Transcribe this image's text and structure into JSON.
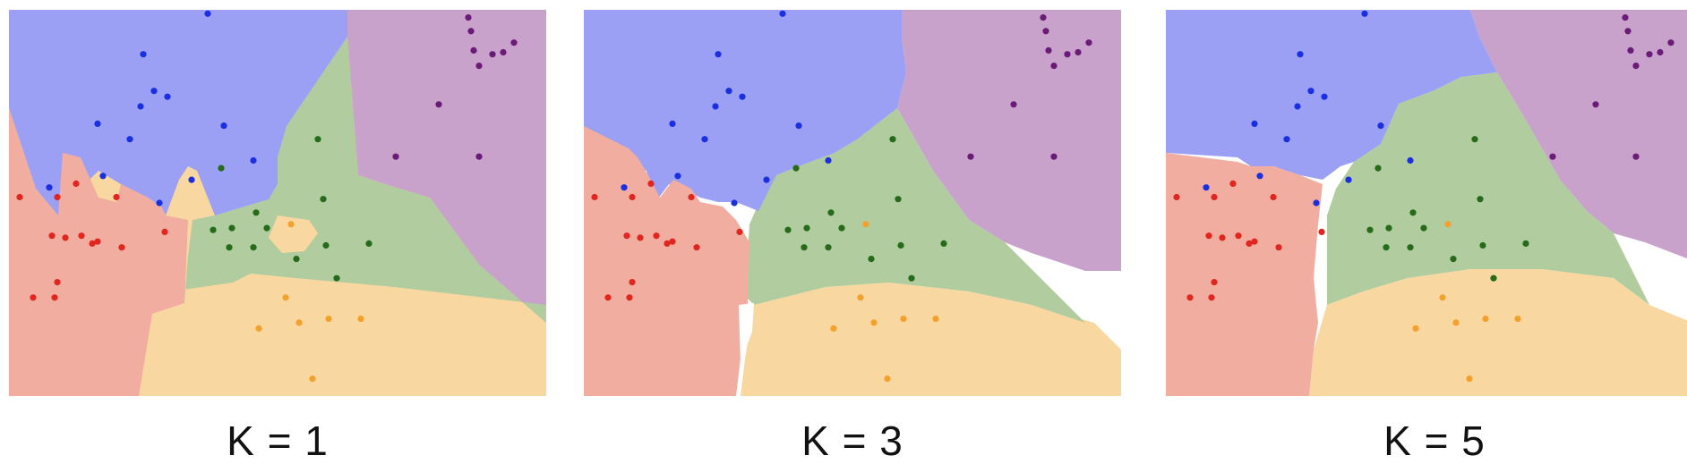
{
  "colors": {
    "blue_region": "#9ba0f5",
    "purple_region": "#c8a2cb",
    "green_region": "#b1cc9f",
    "yellow_region": "#f8d8a0",
    "red_region": "#f1ada0",
    "blue_point": "#1a2fe0",
    "purple_point": "#6a1b77",
    "green_point": "#256b1a",
    "yellow_point": "#f3a12c",
    "red_point": "#e0261e",
    "unassigned": "#ffffff"
  },
  "panels": [
    {
      "caption": "K = 1",
      "k": 1,
      "shows_unassigned_regions": false
    },
    {
      "caption": "K = 3",
      "k": 3,
      "shows_unassigned_regions": true
    },
    {
      "caption": "K = 5",
      "k": 5,
      "shows_unassigned_regions": true
    }
  ],
  "points": [
    {
      "c": "blue",
      "x": 0.37,
      "y": 0.01
    },
    {
      "c": "blue",
      "x": 0.25,
      "y": 0.115
    },
    {
      "c": "blue",
      "x": 0.27,
      "y": 0.21
    },
    {
      "c": "blue",
      "x": 0.295,
      "y": 0.225
    },
    {
      "c": "blue",
      "x": 0.245,
      "y": 0.25
    },
    {
      "c": "blue",
      "x": 0.165,
      "y": 0.295
    },
    {
      "c": "blue",
      "x": 0.225,
      "y": 0.335
    },
    {
      "c": "blue",
      "x": 0.4,
      "y": 0.3
    },
    {
      "c": "blue",
      "x": 0.455,
      "y": 0.39
    },
    {
      "c": "blue",
      "x": 0.175,
      "y": 0.43
    },
    {
      "c": "blue",
      "x": 0.34,
      "y": 0.44
    },
    {
      "c": "blue",
      "x": 0.075,
      "y": 0.46
    },
    {
      "c": "blue",
      "x": 0.28,
      "y": 0.5
    },
    {
      "c": "purple",
      "x": 0.855,
      "y": 0.02
    },
    {
      "c": "purple",
      "x": 0.86,
      "y": 0.055
    },
    {
      "c": "purple",
      "x": 0.865,
      "y": 0.105
    },
    {
      "c": "purple",
      "x": 0.875,
      "y": 0.145
    },
    {
      "c": "purple",
      "x": 0.9,
      "y": 0.115
    },
    {
      "c": "purple",
      "x": 0.92,
      "y": 0.11
    },
    {
      "c": "purple",
      "x": 0.94,
      "y": 0.085
    },
    {
      "c": "purple",
      "x": 0.8,
      "y": 0.245
    },
    {
      "c": "purple",
      "x": 0.72,
      "y": 0.38
    },
    {
      "c": "purple",
      "x": 0.875,
      "y": 0.38
    },
    {
      "c": "green",
      "x": 0.575,
      "y": 0.335
    },
    {
      "c": "green",
      "x": 0.395,
      "y": 0.41
    },
    {
      "c": "green",
      "x": 0.585,
      "y": 0.49
    },
    {
      "c": "green",
      "x": 0.46,
      "y": 0.525
    },
    {
      "c": "green",
      "x": 0.38,
      "y": 0.57
    },
    {
      "c": "green",
      "x": 0.415,
      "y": 0.565
    },
    {
      "c": "green",
      "x": 0.48,
      "y": 0.565
    },
    {
      "c": "green",
      "x": 0.41,
      "y": 0.615
    },
    {
      "c": "green",
      "x": 0.455,
      "y": 0.615
    },
    {
      "c": "green",
      "x": 0.535,
      "y": 0.645
    },
    {
      "c": "green",
      "x": 0.59,
      "y": 0.61
    },
    {
      "c": "green",
      "x": 0.67,
      "y": 0.605
    },
    {
      "c": "green",
      "x": 0.61,
      "y": 0.695
    },
    {
      "c": "yellow",
      "x": 0.525,
      "y": 0.555
    },
    {
      "c": "yellow",
      "x": 0.515,
      "y": 0.745
    },
    {
      "c": "yellow",
      "x": 0.595,
      "y": 0.8
    },
    {
      "c": "yellow",
      "x": 0.655,
      "y": 0.8
    },
    {
      "c": "yellow",
      "x": 0.54,
      "y": 0.81
    },
    {
      "c": "yellow",
      "x": 0.465,
      "y": 0.825
    },
    {
      "c": "yellow",
      "x": 0.565,
      "y": 0.955
    },
    {
      "c": "red",
      "x": 0.125,
      "y": 0.45
    },
    {
      "c": "red",
      "x": 0.02,
      "y": 0.485
    },
    {
      "c": "red",
      "x": 0.09,
      "y": 0.485
    },
    {
      "c": "red",
      "x": 0.2,
      "y": 0.485
    },
    {
      "c": "red",
      "x": 0.29,
      "y": 0.575
    },
    {
      "c": "red",
      "x": 0.08,
      "y": 0.585
    },
    {
      "c": "red",
      "x": 0.105,
      "y": 0.59
    },
    {
      "c": "red",
      "x": 0.135,
      "y": 0.585
    },
    {
      "c": "red",
      "x": 0.155,
      "y": 0.605
    },
    {
      "c": "red",
      "x": 0.165,
      "y": 0.6
    },
    {
      "c": "red",
      "x": 0.21,
      "y": 0.615
    },
    {
      "c": "red",
      "x": 0.09,
      "y": 0.705
    },
    {
      "c": "red",
      "x": 0.085,
      "y": 0.745
    },
    {
      "c": "red",
      "x": 0.045,
      "y": 0.745
    }
  ]
}
